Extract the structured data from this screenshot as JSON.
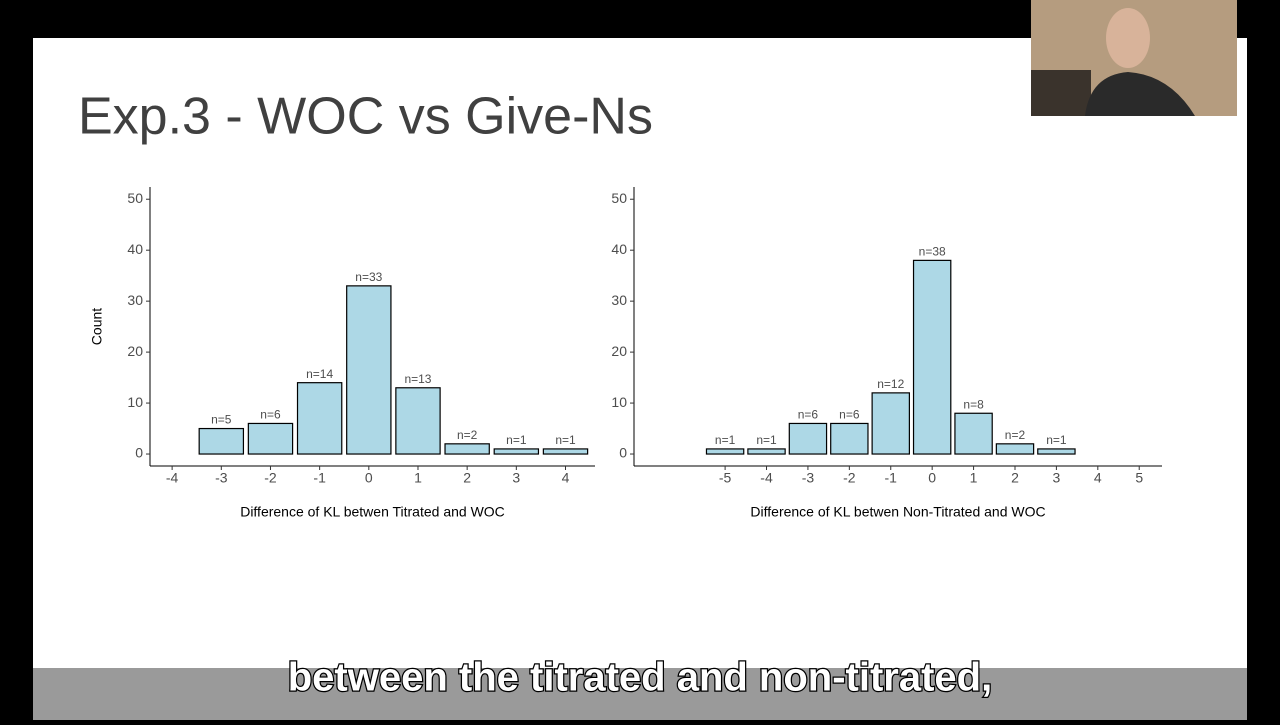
{
  "slide_title": "Exp.3 - WOC vs Give-Ns",
  "caption": "between the titrated and non-titrated,",
  "chart_data": [
    {
      "type": "bar",
      "xlabel": "Difference of KL betwen Titrated and WOC",
      "ylabel": "Count",
      "x": [
        -3,
        -2,
        -1,
        0,
        1,
        2,
        3,
        4
      ],
      "values": [
        5,
        6,
        14,
        33,
        13,
        2,
        1,
        1
      ],
      "value_labels": [
        "n=5",
        "n=6",
        "n=14",
        "n=33",
        "n=13",
        "n=2",
        "n=1",
        "n=1"
      ],
      "color": "#add8e6",
      "xlim": [
        -4.45,
        4.6
      ],
      "xticks": [
        -4,
        -3,
        -2,
        -1,
        0,
        1,
        2,
        3,
        4
      ],
      "ylim": [
        -2.35,
        52.4
      ],
      "yticks": [
        0,
        10,
        20,
        30,
        40,
        50
      ]
    },
    {
      "type": "bar",
      "xlabel": "Difference of KL betwen Non-Titrated and WOC",
      "x": [
        -5,
        -4,
        -3,
        -2,
        -1,
        0,
        1,
        2,
        3
      ],
      "values": [
        1,
        1,
        6,
        6,
        12,
        38,
        8,
        2,
        1
      ],
      "value_labels": [
        "n=1",
        "n=1",
        "n=6",
        "n=6",
        "n=12",
        "n=38",
        "n=8",
        "n=2",
        "n=1"
      ],
      "color": "#add8e6",
      "xlim": [
        -7.2,
        5.55
      ],
      "xticks": [
        -5,
        -4,
        -3,
        -2,
        -1,
        0,
        1,
        2,
        3,
        4,
        5
      ],
      "ylim": [
        -2.35,
        52.4
      ],
      "yticks": [
        0,
        10,
        20,
        30,
        40,
        50
      ]
    }
  ]
}
